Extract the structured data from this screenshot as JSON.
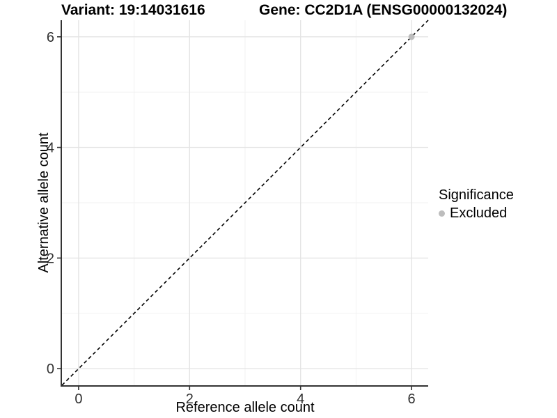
{
  "titles": {
    "left": "Variant: 19:14031616",
    "right": "Gene: CC2D1A (ENSG00000132024)"
  },
  "chart_data": {
    "type": "scatter",
    "title_left": "Variant: 19:14031616",
    "title_right": "Gene: CC2D1A (ENSG00000132024)",
    "xlabel": "Reference allele count",
    "ylabel": "Alternative allele count",
    "xlim": [
      -0.3,
      6.3
    ],
    "ylim": [
      -0.3,
      6.3
    ],
    "x_major_ticks": [
      0,
      2,
      4,
      6
    ],
    "y_major_ticks": [
      0,
      2,
      4,
      6
    ],
    "x_minor_ticks": [
      1,
      3,
      5
    ],
    "y_minor_ticks": [
      1,
      3,
      5
    ],
    "grid": "major+minor",
    "identity_line": {
      "type": "dashed",
      "slope": 1,
      "intercept": 0,
      "color": "#000000"
    },
    "series": [
      {
        "name": "Excluded",
        "color": "#bdbdbd",
        "points": [
          {
            "x": 6,
            "y": 6
          }
        ]
      }
    ],
    "legend": {
      "title": "Significance",
      "position": "right",
      "entries": [
        {
          "label": "Excluded",
          "color": "#bdbdbd"
        }
      ]
    }
  },
  "colors": {
    "axis_line": "#333333",
    "tick_label": "#303030",
    "grid_major": "#e4e4e4",
    "grid_minor": "#f2f2f2",
    "point": "#bdbdbd",
    "background": "#ffffff"
  }
}
